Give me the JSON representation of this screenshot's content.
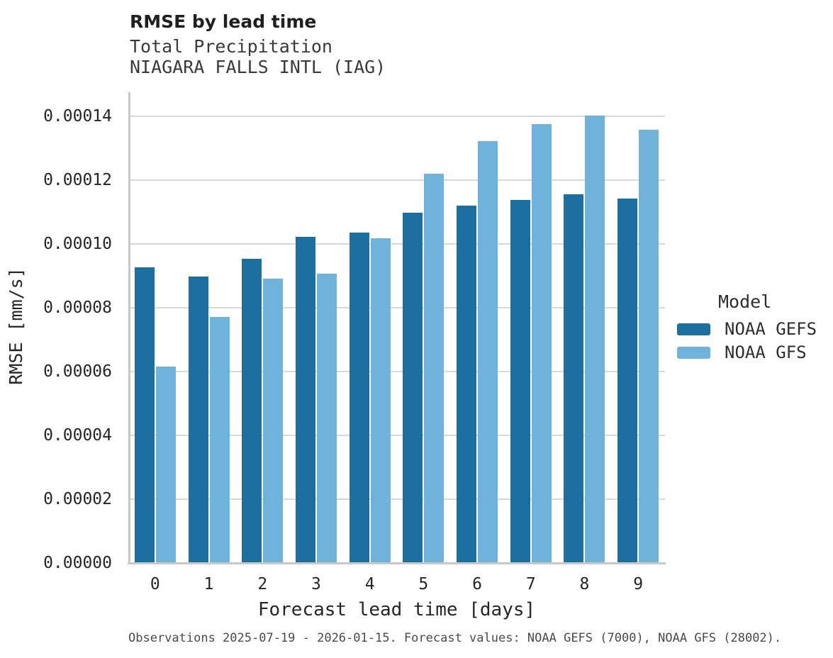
{
  "header": {
    "title": "RMSE by lead time",
    "subtitle_variable": "Total Precipitation",
    "subtitle_station": "NIAGARA FALLS INTL (IAG)"
  },
  "chart_data": {
    "type": "bar",
    "title": "RMSE by lead time",
    "subtitle": [
      "Total Precipitation",
      "NIAGARA FALLS INTL (IAG)"
    ],
    "categories": [
      "0",
      "1",
      "2",
      "3",
      "4",
      "5",
      "6",
      "7",
      "8",
      "9"
    ],
    "series": [
      {
        "name": "NOAA GEFS",
        "color": "#1d6f9f",
        "values": [
          9.26e-05,
          8.99e-05,
          9.53e-05,
          0.0001023,
          0.0001036,
          0.0001098,
          0.000112,
          0.0001139,
          0.0001156,
          0.0001142
        ]
      },
      {
        "name": "NOAA GFS",
        "color": "#6fb2da",
        "values": [
          6.15e-05,
          7.71e-05,
          8.92e-05,
          9.07e-05,
          0.0001019,
          0.000122,
          0.0001323,
          0.0001377,
          0.0001403,
          0.0001359
        ]
      }
    ],
    "xlabel": "Forecast lead time [days]",
    "ylabel": "RMSE [mm/s]",
    "ylim": [
      0,
      0.0001476
    ],
    "yticks": [
      0.0,
      2e-05,
      4e-05,
      6e-05,
      8e-05,
      0.0001,
      0.00012,
      0.00014
    ],
    "ytick_labels": [
      "0.00000",
      "0.00002",
      "0.00004",
      "0.00006",
      "0.00008",
      "0.00010",
      "0.00012",
      "0.00014"
    ],
    "grid": "horizontal",
    "legend_title": "Model",
    "legend_position": "right"
  },
  "legend": {
    "title": "Model",
    "entries": [
      {
        "label": "NOAA GEFS",
        "color": "#1d6f9f"
      },
      {
        "label": "NOAA GFS",
        "color": "#6fb2da"
      }
    ]
  },
  "footer": {
    "note": "Observations 2025-07-19 - 2026-01-15. Forecast values: NOAA GEFS (7000), NOAA GFS (28002)."
  },
  "colors": {
    "gridline": "#d8d8d8",
    "spine": "#c9c9c9",
    "background": "#ffffff"
  }
}
